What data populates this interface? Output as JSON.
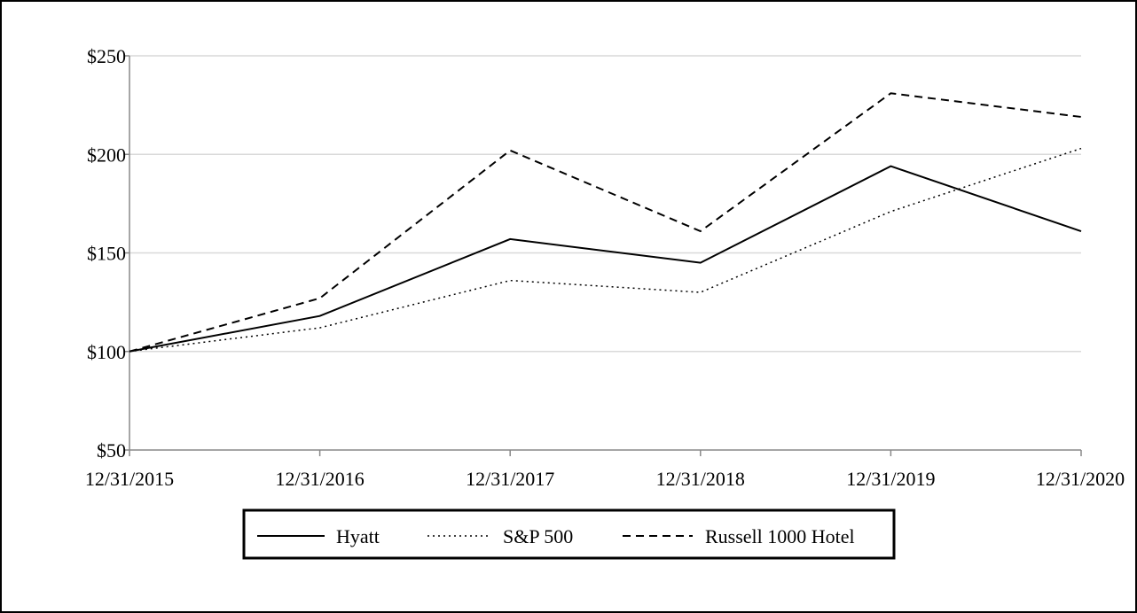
{
  "chart_data": {
    "type": "line",
    "categories": [
      "12/31/2015",
      "12/31/2016",
      "12/31/2017",
      "12/31/2018",
      "12/31/2019",
      "12/31/2020"
    ],
    "series": [
      {
        "name": "Hyatt",
        "values": [
          100,
          118,
          157,
          145,
          194,
          161
        ],
        "style": "solid"
      },
      {
        "name": "S&P 500",
        "values": [
          100,
          112,
          136,
          130,
          171,
          203
        ],
        "style": "dotted"
      },
      {
        "name": "Russell 1000 Hotel",
        "values": [
          100,
          127,
          202,
          161,
          231,
          219
        ],
        "style": "dashed"
      }
    ],
    "yticks": [
      "$250",
      "$200",
      "$150",
      "$100",
      "$50"
    ],
    "ytick_values": [
      250,
      200,
      150,
      100,
      50
    ],
    "ylim": [
      50,
      250
    ],
    "grid": true,
    "legend_position": "bottom-center",
    "line_color": "#000000",
    "grid_color": "#d9d9d9"
  }
}
